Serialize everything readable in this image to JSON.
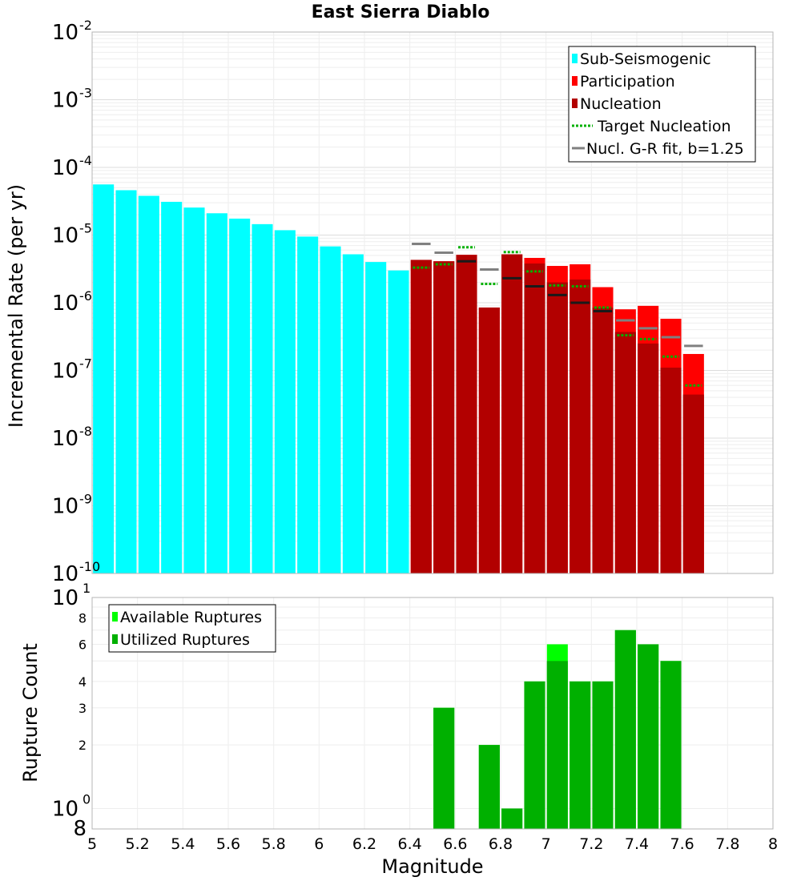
{
  "chart_data": [
    {
      "type": "bar",
      "title": "East Sierra Diablo",
      "ylabel": "Incremental Rate (per yr)",
      "yscale": "log",
      "xlim": [
        5,
        8
      ],
      "ylim": [
        1e-10,
        0.01
      ],
      "y_tick_bases": [
        "10",
        "10",
        "10",
        "10",
        "10",
        "10",
        "10",
        "10",
        "10"
      ],
      "y_tick_exponents": [
        "-2",
        "-3",
        "-4",
        "-5",
        "-6",
        "-7",
        "-8",
        "-9",
        "-10"
      ],
      "y_tick_values": [
        0.01,
        0.001,
        0.0001,
        1e-05,
        1e-06,
        1e-07,
        1e-08,
        1e-09,
        1e-10
      ],
      "legend": {
        "position": "top-right",
        "entries": [
          "Sub-Seismogenic",
          "Participation",
          "Nucleation",
          "Target Nucleation",
          "Nucl. G-R fit, b=1.25"
        ]
      },
      "series": [
        {
          "name": "Sub-Seismogenic",
          "color": "#00ffff",
          "x": [
            5.05,
            5.15,
            5.25,
            5.35,
            5.45,
            5.55,
            5.65,
            5.75,
            5.85,
            5.95,
            6.05,
            6.15,
            6.25,
            6.35
          ],
          "values": [
            5.6e-05,
            4.6e-05,
            3.8e-05,
            3.1e-05,
            2.55e-05,
            2.1e-05,
            1.75e-05,
            1.45e-05,
            1.18e-05,
            9.5e-06,
            6.8e-06,
            5.2e-06,
            4e-06,
            3e-06
          ]
        },
        {
          "name": "Participation",
          "color": "#ff0000",
          "x": [
            6.45,
            6.55,
            6.65,
            6.75,
            6.85,
            6.95,
            7.05,
            7.15,
            7.25,
            7.35,
            7.45,
            7.55,
            7.65
          ],
          "values": [
            4.3e-06,
            4.1e-06,
            5.1e-06,
            8.5e-07,
            5.2e-06,
            4.6e-06,
            3.5e-06,
            3.7e-06,
            1.7e-06,
            8e-07,
            9e-07,
            5.8e-07,
            1.75e-07
          ]
        },
        {
          "name": "Nucleation",
          "color": "#b20000",
          "x": [
            6.45,
            6.55,
            6.65,
            6.75,
            6.85,
            6.95,
            7.05,
            7.15,
            7.25,
            7.35,
            7.45,
            7.55,
            7.65
          ],
          "values": [
            4.3e-06,
            4.1e-06,
            5.1e-06,
            8.5e-07,
            5.2e-06,
            3.8e-06,
            2e-06,
            2.2e-06,
            8.5e-07,
            3.7e-07,
            2.5e-07,
            1.1e-07,
            4.4e-08
          ]
        },
        {
          "name": "Target Nucleation",
          "color": "#00b000",
          "x": [
            6.45,
            6.55,
            6.65,
            6.75,
            6.85,
            6.95,
            7.05,
            7.15,
            7.25,
            7.35,
            7.45,
            7.55,
            7.65
          ],
          "values": [
            3.3e-06,
            3.7e-06,
            6.6e-06,
            1.9e-06,
            5.6e-06,
            2.9e-06,
            1.8e-06,
            1.75e-06,
            8.5e-07,
            3.3e-07,
            2.9e-07,
            1.6e-07,
            6e-08
          ]
        },
        {
          "name": "Nucl. G-R fit, b=1.25",
          "color": "#808080",
          "x": [
            6.45,
            6.55,
            6.65,
            6.75,
            6.85,
            6.95,
            7.05,
            7.15,
            7.25,
            7.35,
            7.45,
            7.55,
            7.65
          ],
          "values": [
            7.4e-06,
            5.5e-06,
            4.1e-06,
            3.1e-06,
            2.3e-06,
            1.75e-06,
            1.3e-06,
            1e-06,
            7.5e-07,
            5.5e-07,
            4.2e-07,
            3.1e-07,
            2.3e-07
          ]
        }
      ]
    },
    {
      "type": "bar",
      "xlabel": "Magnitude",
      "ylabel": "Rupture Count",
      "yscale": "log",
      "xlim": [
        5,
        8
      ],
      "ylim": [
        0.8,
        10
      ],
      "x_tick_labels": [
        "5",
        "5.2",
        "5.4",
        "5.6",
        "5.8",
        "6",
        "6.2",
        "6.4",
        "6.6",
        "6.8",
        "7",
        "7.2",
        "7.4",
        "7.6",
        "7.8",
        "8"
      ],
      "y_tick_labels": [
        "8",
        "6",
        "4",
        "3",
        "2"
      ],
      "y_tick_values": [
        8,
        6,
        4,
        3,
        2
      ],
      "y_major_base": "10",
      "y_top_exponent": "1",
      "y_mid_exponent": "0",
      "y_bottom_label": "8",
      "legend": {
        "position": "top-left",
        "entries": [
          "Available Ruptures",
          "Utilized Ruptures"
        ]
      },
      "series": [
        {
          "name": "Available Ruptures",
          "color": "#00ff00",
          "x": [
            6.55,
            6.75,
            6.85,
            6.95,
            7.05,
            7.15,
            7.25,
            7.35,
            7.45,
            7.55
          ],
          "values": [
            3,
            2,
            1,
            4,
            6,
            4,
            4,
            7,
            6,
            5
          ]
        },
        {
          "name": "Utilized Ruptures",
          "color": "#00b000",
          "x": [
            6.55,
            6.75,
            6.85,
            6.95,
            7.05,
            7.15,
            7.25,
            7.35,
            7.45,
            7.55
          ],
          "values": [
            3,
            2,
            1,
            4,
            5,
            4,
            4,
            7,
            6,
            5
          ]
        }
      ]
    }
  ]
}
